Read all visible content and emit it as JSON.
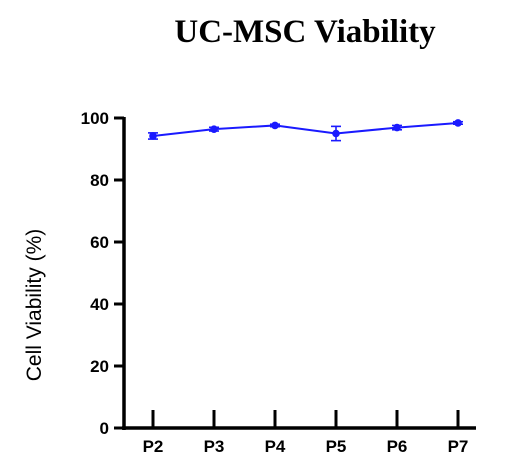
{
  "chart_data": {
    "type": "line",
    "title": "UC-MSC Viability",
    "xlabel": "",
    "ylabel": "Cell Viability  (%)",
    "categories": [
      "P2",
      "P3",
      "P4",
      "P5",
      "P6",
      "P7"
    ],
    "series": [
      {
        "values": [
          94.2,
          96.4,
          97.6,
          95.0,
          96.9,
          98.4
        ],
        "errors": [
          1.0,
          0.6,
          0.4,
          2.3,
          0.7,
          0.4
        ],
        "color": "#1a1aff"
      }
    ],
    "ylim": [
      0,
      100
    ],
    "yticks": [
      0,
      20,
      40,
      60,
      80,
      100
    ],
    "grid": false,
    "legend": "none"
  }
}
